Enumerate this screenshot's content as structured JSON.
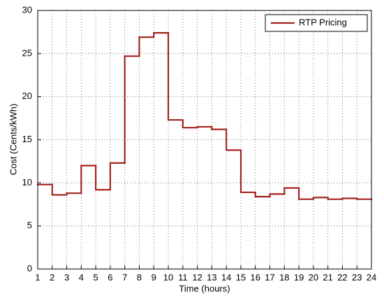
{
  "chart_data": {
    "type": "step",
    "x_label": "Time (hours)",
    "y_label": "Cost (Cents/kWh)",
    "x": [
      1,
      2,
      3,
      4,
      5,
      6,
      7,
      8,
      9,
      10,
      11,
      12,
      13,
      14,
      15,
      16,
      17,
      18,
      19,
      20,
      21,
      22,
      23
    ],
    "series": [
      {
        "name": "RTP Pricing",
        "color": "#a3231c",
        "values": [
          9.8,
          8.6,
          8.8,
          12.0,
          9.2,
          12.3,
          24.7,
          26.9,
          27.4,
          17.3,
          16.4,
          16.5,
          16.2,
          13.8,
          8.9,
          8.4,
          8.7,
          9.4,
          8.1,
          8.3,
          8.1,
          8.2,
          8.1
        ]
      }
    ],
    "xlim": [
      1,
      24
    ],
    "xticks": [
      1,
      2,
      3,
      4,
      5,
      6,
      7,
      8,
      9,
      10,
      11,
      12,
      13,
      14,
      15,
      16,
      17,
      18,
      19,
      20,
      21,
      22,
      23,
      24
    ],
    "ylim": [
      0,
      30
    ],
    "yticks": [
      0,
      5,
      10,
      15,
      20,
      25,
      30
    ],
    "grid": true,
    "legend_position": "upper-right"
  }
}
